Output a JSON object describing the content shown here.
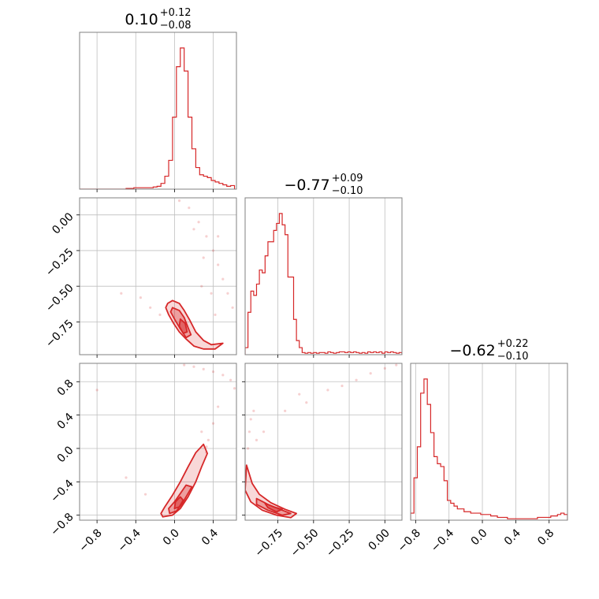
{
  "chart_data": {
    "type": "corner",
    "color": "#d62728",
    "titles": [
      {
        "value": "0.10",
        "plus": "+0.12",
        "minus": "−0.08"
      },
      {
        "value": "−0.77",
        "plus": "+0.09",
        "minus": "−0.10"
      },
      {
        "value": "−0.62",
        "plus": "+0.22",
        "minus": "−0.10"
      }
    ],
    "params": [
      {
        "range": [
          -0.98,
          0.64
        ],
        "ticks": [
          -0.8,
          -0.4,
          0.0,
          0.4
        ],
        "tick_labels": [
          "−0.8",
          "−0.4",
          "0.0",
          "0.4"
        ]
      },
      {
        "range": [
          -0.98,
          0.12
        ],
        "ticks": [
          -0.75,
          -0.5,
          -0.25,
          0.0
        ],
        "tick_labels": [
          "−0.75",
          "−0.50",
          "−0.25",
          "0.00"
        ]
      },
      {
        "range": [
          -0.86,
          1.02
        ],
        "ticks": [
          -0.8,
          -0.4,
          0.0,
          0.4,
          0.8
        ],
        "tick_labels": [
          "−0.8",
          "−0.4",
          "0.0",
          "0.4",
          "0.8"
        ]
      }
    ],
    "histograms": [
      {
        "param": 0,
        "bin_width": 0.04,
        "bin_centers": [
          -0.96,
          -0.92,
          -0.88,
          -0.84,
          -0.8,
          -0.76,
          -0.72,
          -0.68,
          -0.64,
          -0.6,
          -0.56,
          -0.52,
          -0.48,
          -0.44,
          -0.4,
          -0.36,
          -0.32,
          -0.28,
          -0.24,
          -0.2,
          -0.16,
          -0.12,
          -0.08,
          -0.04,
          0.0,
          0.04,
          0.08,
          0.12,
          0.16,
          0.2,
          0.24,
          0.28,
          0.32,
          0.36,
          0.4,
          0.44,
          0.48,
          0.52,
          0.56,
          0.6
        ],
        "counts": [
          0,
          0,
          0,
          0,
          0,
          0,
          0,
          0,
          0,
          0,
          0,
          0,
          0.005,
          0.005,
          0.01,
          0.01,
          0.01,
          0.01,
          0.01,
          0.015,
          0.02,
          0.04,
          0.09,
          0.2,
          0.5,
          0.85,
          0.98,
          0.82,
          0.5,
          0.28,
          0.15,
          0.1,
          0.09,
          0.08,
          0.06,
          0.05,
          0.04,
          0.03,
          0.02,
          0.025
        ]
      },
      {
        "param": 1,
        "bin_width": 0.02,
        "bin_centers": [
          -0.97,
          -0.95,
          -0.93,
          -0.91,
          -0.89,
          -0.87,
          -0.85,
          -0.83,
          -0.81,
          -0.79,
          -0.77,
          -0.75,
          -0.73,
          -0.71,
          -0.69,
          -0.67,
          -0.65,
          -0.63,
          -0.61,
          -0.59,
          -0.57,
          -0.55,
          -0.53,
          -0.51,
          -0.49,
          -0.47,
          -0.45,
          -0.43,
          -0.41,
          -0.39,
          -0.37,
          -0.35,
          -0.33,
          -0.31,
          -0.29,
          -0.27,
          -0.25,
          -0.23,
          -0.21,
          -0.19,
          -0.17,
          -0.15,
          -0.13,
          -0.11,
          -0.09,
          -0.07,
          -0.05,
          -0.03,
          -0.01,
          0.01,
          0.03,
          0.05,
          0.07,
          0.09,
          0.11
        ],
        "counts": [
          0.05,
          0.3,
          0.45,
          0.42,
          0.5,
          0.6,
          0.58,
          0.7,
          0.8,
          0.8,
          0.88,
          0.93,
          1.0,
          0.92,
          0.85,
          0.55,
          0.55,
          0.25,
          0.1,
          0.05,
          0.015,
          0.01,
          0.015,
          0.01,
          0.015,
          0.01,
          0.015,
          0.015,
          0.01,
          0.02,
          0.015,
          0.01,
          0.015,
          0.02,
          0.02,
          0.015,
          0.02,
          0.015,
          0.02,
          0.015,
          0.01,
          0.015,
          0.01,
          0.02,
          0.015,
          0.02,
          0.015,
          0.02,
          0.01,
          0.02,
          0.015,
          0.02,
          0.015,
          0.01,
          0.015
        ]
      },
      {
        "param": 2,
        "bin_width": 0.04,
        "bin_centers": [
          -0.84,
          -0.8,
          -0.76,
          -0.72,
          -0.68,
          -0.64,
          -0.6,
          -0.56,
          -0.52,
          -0.48,
          -0.44,
          -0.4,
          -0.36,
          -0.32,
          -0.28,
          -0.24,
          -0.2,
          -0.16,
          -0.12,
          -0.08,
          -0.04,
          0.0,
          0.04,
          0.08,
          0.12,
          0.16,
          0.2,
          0.24,
          0.28,
          0.32,
          0.36,
          0.4,
          0.44,
          0.48,
          0.52,
          0.56,
          0.6,
          0.64,
          0.68,
          0.72,
          0.76,
          0.8,
          0.84,
          0.88,
          0.92,
          0.96,
          1.0
        ],
        "counts": [
          0.05,
          0.3,
          0.52,
          0.9,
          1.0,
          0.82,
          0.62,
          0.45,
          0.4,
          0.38,
          0.28,
          0.14,
          0.12,
          0.1,
          0.08,
          0.08,
          0.06,
          0.06,
          0.05,
          0.05,
          0.05,
          0.04,
          0.04,
          0.04,
          0.03,
          0.03,
          0.02,
          0.02,
          0.02,
          0.01,
          0.01,
          0.01,
          0.01,
          0.01,
          0.01,
          0.01,
          0.01,
          0.01,
          0.02,
          0.02,
          0.02,
          0.02,
          0.03,
          0.03,
          0.04,
          0.05,
          0.04
        ]
      }
    ],
    "contour_panels": [
      {
        "x_param": 0,
        "y_param": 1,
        "contours": [
          {
            "level": "outer",
            "points": [
              [
                -0.07,
                -0.62
              ],
              [
                -0.02,
                -0.6
              ],
              [
                0.05,
                -0.62
              ],
              [
                0.1,
                -0.67
              ],
              [
                0.16,
                -0.74
              ],
              [
                0.22,
                -0.82
              ],
              [
                0.3,
                -0.88
              ],
              [
                0.38,
                -0.91
              ],
              [
                0.5,
                -0.9
              ],
              [
                0.42,
                -0.94
              ],
              [
                0.3,
                -0.94
              ],
              [
                0.2,
                -0.92
              ],
              [
                0.12,
                -0.87
              ],
              [
                0.05,
                -0.82
              ],
              [
                -0.01,
                -0.76
              ],
              [
                -0.06,
                -0.7
              ],
              [
                -0.09,
                -0.65
              ]
            ]
          },
          {
            "level": "inner",
            "points": [
              [
                -0.02,
                -0.65
              ],
              [
                0.05,
                -0.67
              ],
              [
                0.1,
                -0.72
              ],
              [
                0.14,
                -0.79
              ],
              [
                0.17,
                -0.84
              ],
              [
                0.12,
                -0.86
              ],
              [
                0.06,
                -0.8
              ],
              [
                0.0,
                -0.73
              ],
              [
                -0.04,
                -0.68
              ]
            ]
          },
          {
            "level": "core",
            "points": [
              [
                0.06,
                -0.73
              ],
              [
                0.11,
                -0.76
              ],
              [
                0.13,
                -0.82
              ],
              [
                0.09,
                -0.83
              ],
              [
                0.05,
                -0.78
              ]
            ]
          }
        ],
        "outliers": [
          [
            -0.8,
            0.15
          ],
          [
            -0.55,
            -0.55
          ],
          [
            -0.35,
            -0.58
          ],
          [
            -0.25,
            -0.65
          ],
          [
            -0.15,
            -0.7
          ],
          [
            0.05,
            0.1
          ],
          [
            0.15,
            0.05
          ],
          [
            0.25,
            -0.05
          ],
          [
            0.33,
            -0.15
          ],
          [
            0.4,
            -0.25
          ],
          [
            0.45,
            -0.35
          ],
          [
            0.5,
            -0.45
          ],
          [
            0.55,
            -0.55
          ],
          [
            0.6,
            -0.65
          ],
          [
            0.2,
            -0.1
          ],
          [
            0.3,
            -0.3
          ],
          [
            0.45,
            -0.15
          ],
          [
            0.38,
            -0.55
          ],
          [
            0.42,
            -0.7
          ],
          [
            0.28,
            -0.5
          ]
        ]
      },
      {
        "x_param": 0,
        "y_param": 2,
        "contours": [
          {
            "level": "outer",
            "points": [
              [
                -0.12,
                -0.82
              ],
              [
                -0.02,
                -0.8
              ],
              [
                0.06,
                -0.72
              ],
              [
                0.14,
                -0.58
              ],
              [
                0.22,
                -0.4
              ],
              [
                0.28,
                -0.22
              ],
              [
                0.34,
                -0.06
              ],
              [
                0.3,
                0.05
              ],
              [
                0.22,
                -0.05
              ],
              [
                0.14,
                -0.22
              ],
              [
                0.06,
                -0.4
              ],
              [
                -0.02,
                -0.56
              ],
              [
                -0.1,
                -0.7
              ],
              [
                -0.14,
                -0.78
              ]
            ]
          },
          {
            "level": "inner",
            "points": [
              [
                -0.05,
                -0.78
              ],
              [
                0.02,
                -0.75
              ],
              [
                0.08,
                -0.66
              ],
              [
                0.14,
                -0.54
              ],
              [
                0.18,
                -0.46
              ],
              [
                0.12,
                -0.44
              ],
              [
                0.06,
                -0.54
              ],
              [
                0.0,
                -0.64
              ],
              [
                -0.06,
                -0.72
              ]
            ]
          },
          {
            "level": "core",
            "points": [
              [
                0.0,
                -0.72
              ],
              [
                0.05,
                -0.7
              ],
              [
                0.09,
                -0.62
              ],
              [
                0.06,
                -0.58
              ],
              [
                0.01,
                -0.64
              ]
            ]
          }
        ],
        "outliers": [
          [
            0.33,
            0.02
          ],
          [
            0.33,
            -0.05
          ],
          [
            0.1,
            1.0
          ],
          [
            0.2,
            0.98
          ],
          [
            0.3,
            0.95
          ],
          [
            0.4,
            0.92
          ],
          [
            0.5,
            0.88
          ],
          [
            0.58,
            0.82
          ],
          [
            0.62,
            0.72
          ],
          [
            0.35,
            0.1
          ],
          [
            0.4,
            0.3
          ],
          [
            0.45,
            0.5
          ],
          [
            0.28,
            0.2
          ],
          [
            -0.5,
            -0.35
          ],
          [
            -0.8,
            0.7
          ],
          [
            -0.3,
            -0.55
          ]
        ]
      },
      {
        "x_param": 1,
        "y_param": 2,
        "contours": [
          {
            "level": "outer",
            "points": [
              [
                -0.97,
                -0.2
              ],
              [
                -0.93,
                -0.42
              ],
              [
                -0.88,
                -0.55
              ],
              [
                -0.8,
                -0.65
              ],
              [
                -0.7,
                -0.73
              ],
              [
                -0.62,
                -0.78
              ],
              [
                -0.66,
                -0.83
              ],
              [
                -0.76,
                -0.8
              ],
              [
                -0.86,
                -0.74
              ],
              [
                -0.94,
                -0.64
              ],
              [
                -0.98,
                -0.5
              ]
            ]
          },
          {
            "level": "inner",
            "points": [
              [
                -0.9,
                -0.6
              ],
              [
                -0.82,
                -0.67
              ],
              [
                -0.72,
                -0.74
              ],
              [
                -0.66,
                -0.78
              ],
              [
                -0.72,
                -0.8
              ],
              [
                -0.82,
                -0.74
              ],
              [
                -0.9,
                -0.67
              ]
            ]
          },
          {
            "level": "core",
            "points": [
              [
                -0.84,
                -0.66
              ],
              [
                -0.78,
                -0.7
              ],
              [
                -0.72,
                -0.73
              ],
              [
                -0.76,
                -0.76
              ],
              [
                -0.82,
                -0.71
              ]
            ]
          }
        ],
        "outliers": [
          [
            -0.96,
            0.0
          ],
          [
            -0.95,
            0.2
          ],
          [
            -0.94,
            0.35
          ],
          [
            -0.92,
            0.45
          ],
          [
            -0.85,
            0.2
          ],
          [
            -0.7,
            0.45
          ],
          [
            -0.55,
            0.55
          ],
          [
            -0.4,
            0.7
          ],
          [
            -0.3,
            0.75
          ],
          [
            -0.2,
            0.82
          ],
          [
            -0.1,
            0.9
          ],
          [
            0.0,
            0.96
          ],
          [
            0.08,
            1.0
          ],
          [
            -0.6,
            0.65
          ],
          [
            -0.9,
            0.1
          ]
        ]
      }
    ]
  }
}
